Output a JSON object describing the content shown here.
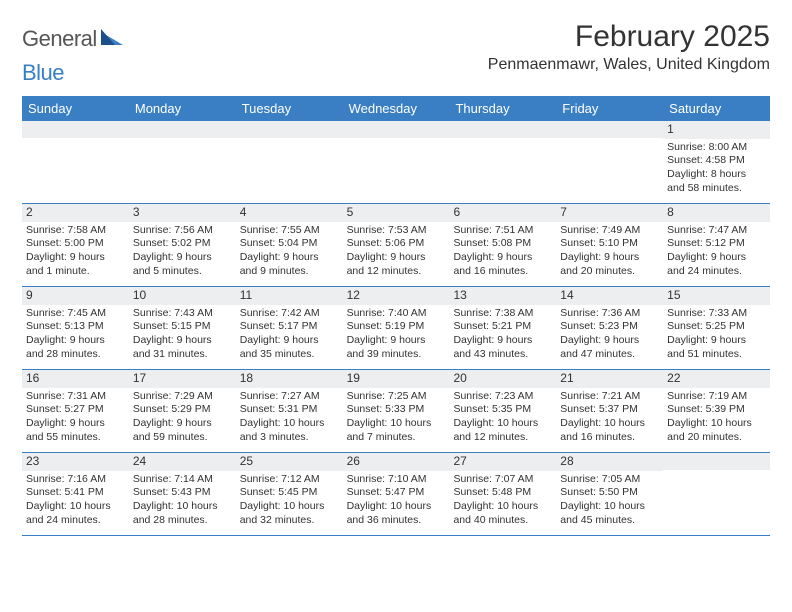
{
  "logo": {
    "text1": "General",
    "text2": "Blue"
  },
  "title": {
    "month": "February 2025",
    "location": "Penmaenmawr, Wales, United Kingdom"
  },
  "colors": {
    "header_bg": "#3a7fc4",
    "header_text": "#ffffff",
    "daynum_bg": "#eceeef",
    "week_border": "#3a7fc4",
    "text": "#323232",
    "logo_gray": "#555555",
    "logo_blue": "#3a7fc4",
    "page_bg": "#ffffff"
  },
  "day_names": [
    "Sunday",
    "Monday",
    "Tuesday",
    "Wednesday",
    "Thursday",
    "Friday",
    "Saturday"
  ],
  "weeks": [
    [
      {
        "num": "",
        "sunrise": "",
        "sunset": "",
        "daylight": ""
      },
      {
        "num": "",
        "sunrise": "",
        "sunset": "",
        "daylight": ""
      },
      {
        "num": "",
        "sunrise": "",
        "sunset": "",
        "daylight": ""
      },
      {
        "num": "",
        "sunrise": "",
        "sunset": "",
        "daylight": ""
      },
      {
        "num": "",
        "sunrise": "",
        "sunset": "",
        "daylight": ""
      },
      {
        "num": "",
        "sunrise": "",
        "sunset": "",
        "daylight": ""
      },
      {
        "num": "1",
        "sunrise": "Sunrise: 8:00 AM",
        "sunset": "Sunset: 4:58 PM",
        "daylight": "Daylight: 8 hours and 58 minutes."
      }
    ],
    [
      {
        "num": "2",
        "sunrise": "Sunrise: 7:58 AM",
        "sunset": "Sunset: 5:00 PM",
        "daylight": "Daylight: 9 hours and 1 minute."
      },
      {
        "num": "3",
        "sunrise": "Sunrise: 7:56 AM",
        "sunset": "Sunset: 5:02 PM",
        "daylight": "Daylight: 9 hours and 5 minutes."
      },
      {
        "num": "4",
        "sunrise": "Sunrise: 7:55 AM",
        "sunset": "Sunset: 5:04 PM",
        "daylight": "Daylight: 9 hours and 9 minutes."
      },
      {
        "num": "5",
        "sunrise": "Sunrise: 7:53 AM",
        "sunset": "Sunset: 5:06 PM",
        "daylight": "Daylight: 9 hours and 12 minutes."
      },
      {
        "num": "6",
        "sunrise": "Sunrise: 7:51 AM",
        "sunset": "Sunset: 5:08 PM",
        "daylight": "Daylight: 9 hours and 16 minutes."
      },
      {
        "num": "7",
        "sunrise": "Sunrise: 7:49 AM",
        "sunset": "Sunset: 5:10 PM",
        "daylight": "Daylight: 9 hours and 20 minutes."
      },
      {
        "num": "8",
        "sunrise": "Sunrise: 7:47 AM",
        "sunset": "Sunset: 5:12 PM",
        "daylight": "Daylight: 9 hours and 24 minutes."
      }
    ],
    [
      {
        "num": "9",
        "sunrise": "Sunrise: 7:45 AM",
        "sunset": "Sunset: 5:13 PM",
        "daylight": "Daylight: 9 hours and 28 minutes."
      },
      {
        "num": "10",
        "sunrise": "Sunrise: 7:43 AM",
        "sunset": "Sunset: 5:15 PM",
        "daylight": "Daylight: 9 hours and 31 minutes."
      },
      {
        "num": "11",
        "sunrise": "Sunrise: 7:42 AM",
        "sunset": "Sunset: 5:17 PM",
        "daylight": "Daylight: 9 hours and 35 minutes."
      },
      {
        "num": "12",
        "sunrise": "Sunrise: 7:40 AM",
        "sunset": "Sunset: 5:19 PM",
        "daylight": "Daylight: 9 hours and 39 minutes."
      },
      {
        "num": "13",
        "sunrise": "Sunrise: 7:38 AM",
        "sunset": "Sunset: 5:21 PM",
        "daylight": "Daylight: 9 hours and 43 minutes."
      },
      {
        "num": "14",
        "sunrise": "Sunrise: 7:36 AM",
        "sunset": "Sunset: 5:23 PM",
        "daylight": "Daylight: 9 hours and 47 minutes."
      },
      {
        "num": "15",
        "sunrise": "Sunrise: 7:33 AM",
        "sunset": "Sunset: 5:25 PM",
        "daylight": "Daylight: 9 hours and 51 minutes."
      }
    ],
    [
      {
        "num": "16",
        "sunrise": "Sunrise: 7:31 AM",
        "sunset": "Sunset: 5:27 PM",
        "daylight": "Daylight: 9 hours and 55 minutes."
      },
      {
        "num": "17",
        "sunrise": "Sunrise: 7:29 AM",
        "sunset": "Sunset: 5:29 PM",
        "daylight": "Daylight: 9 hours and 59 minutes."
      },
      {
        "num": "18",
        "sunrise": "Sunrise: 7:27 AM",
        "sunset": "Sunset: 5:31 PM",
        "daylight": "Daylight: 10 hours and 3 minutes."
      },
      {
        "num": "19",
        "sunrise": "Sunrise: 7:25 AM",
        "sunset": "Sunset: 5:33 PM",
        "daylight": "Daylight: 10 hours and 7 minutes."
      },
      {
        "num": "20",
        "sunrise": "Sunrise: 7:23 AM",
        "sunset": "Sunset: 5:35 PM",
        "daylight": "Daylight: 10 hours and 12 minutes."
      },
      {
        "num": "21",
        "sunrise": "Sunrise: 7:21 AM",
        "sunset": "Sunset: 5:37 PM",
        "daylight": "Daylight: 10 hours and 16 minutes."
      },
      {
        "num": "22",
        "sunrise": "Sunrise: 7:19 AM",
        "sunset": "Sunset: 5:39 PM",
        "daylight": "Daylight: 10 hours and 20 minutes."
      }
    ],
    [
      {
        "num": "23",
        "sunrise": "Sunrise: 7:16 AM",
        "sunset": "Sunset: 5:41 PM",
        "daylight": "Daylight: 10 hours and 24 minutes."
      },
      {
        "num": "24",
        "sunrise": "Sunrise: 7:14 AM",
        "sunset": "Sunset: 5:43 PM",
        "daylight": "Daylight: 10 hours and 28 minutes."
      },
      {
        "num": "25",
        "sunrise": "Sunrise: 7:12 AM",
        "sunset": "Sunset: 5:45 PM",
        "daylight": "Daylight: 10 hours and 32 minutes."
      },
      {
        "num": "26",
        "sunrise": "Sunrise: 7:10 AM",
        "sunset": "Sunset: 5:47 PM",
        "daylight": "Daylight: 10 hours and 36 minutes."
      },
      {
        "num": "27",
        "sunrise": "Sunrise: 7:07 AM",
        "sunset": "Sunset: 5:48 PM",
        "daylight": "Daylight: 10 hours and 40 minutes."
      },
      {
        "num": "28",
        "sunrise": "Sunrise: 7:05 AM",
        "sunset": "Sunset: 5:50 PM",
        "daylight": "Daylight: 10 hours and 45 minutes."
      },
      {
        "num": "",
        "sunrise": "",
        "sunset": "",
        "daylight": ""
      }
    ]
  ]
}
